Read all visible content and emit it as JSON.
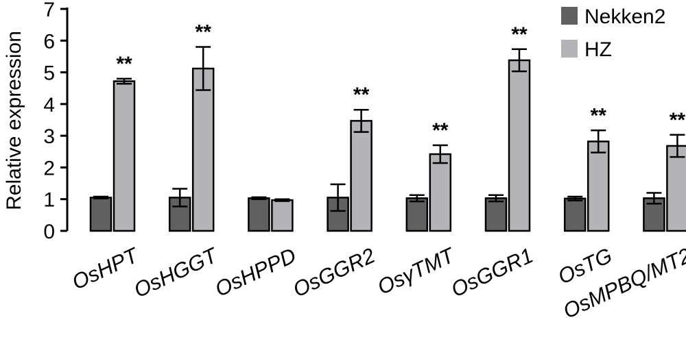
{
  "chart_data": {
    "type": "bar",
    "title": "",
    "xlabel": "",
    "ylabel": "Relative expression",
    "ylim": [
      0,
      7
    ],
    "yticks": [
      "0",
      "1",
      "2",
      "3",
      "4",
      "5",
      "6",
      "7"
    ],
    "grid": false,
    "legend_position": "top-right",
    "categories": [
      "OsHPT",
      "OsHGGT",
      "OsHPPD",
      "OsGGR2",
      "OsγTMT",
      "OsGGR1",
      "OsTG",
      "OsMPBQ/MT2"
    ],
    "series": [
      {
        "name": "Nekken2",
        "color": "#606060",
        "values": [
          1.05,
          1.05,
          1.03,
          1.05,
          1.03,
          1.03,
          1.02,
          1.03
        ],
        "errors": [
          0.03,
          0.28,
          0.03,
          0.42,
          0.1,
          0.1,
          0.06,
          0.17
        ]
      },
      {
        "name": "HZ",
        "color": "#b4b4b8",
        "values": [
          4.72,
          5.12,
          0.97,
          3.47,
          2.42,
          5.38,
          2.82,
          2.68
        ],
        "errors": [
          0.08,
          0.68,
          0.03,
          0.35,
          0.28,
          0.35,
          0.35,
          0.35
        ]
      }
    ],
    "annotations": [
      "**",
      "**",
      "",
      "**",
      "**",
      "**",
      "**",
      "**"
    ]
  }
}
